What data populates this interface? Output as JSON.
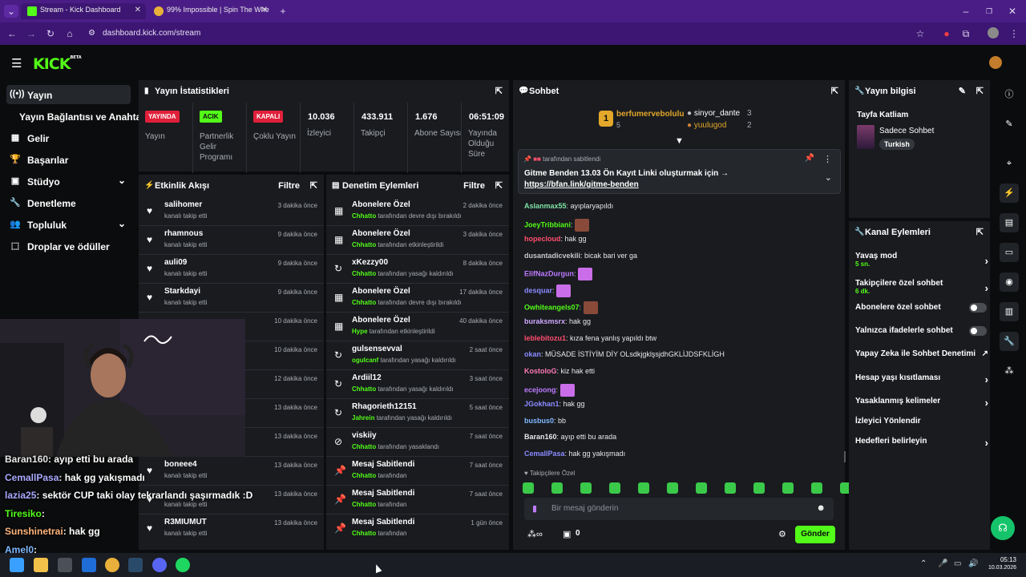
{
  "browser": {
    "tabs": [
      {
        "title": "Stream - Kick Dashboard",
        "active": true
      },
      {
        "title": "99% Impossible | Spin The Whe",
        "active": false
      }
    ],
    "url": "dashboard.kick.com/stream"
  },
  "app": {
    "logo": "KICK",
    "logo_badge": "BETA"
  },
  "nav": {
    "items": [
      {
        "label": "Yayın",
        "icon": "broadcast-icon",
        "active": true
      },
      {
        "label": "Yayın Bağlantısı ve Anahtarı",
        "icon": "",
        "active": false
      },
      {
        "label": "Gelir",
        "icon": "revenue-icon",
        "active": false
      },
      {
        "label": "Başarılar",
        "icon": "trophy-icon",
        "active": false
      },
      {
        "label": "Stüdyo",
        "icon": "studio-icon",
        "active": false,
        "chevron": true
      },
      {
        "label": "Denetleme",
        "icon": "wrench-icon",
        "active": false
      },
      {
        "label": "Topluluk",
        "icon": "community-icon",
        "active": false,
        "chevron": true
      },
      {
        "label": "Droplar ve ödüller",
        "icon": "drops-icon",
        "active": false
      }
    ]
  },
  "stats": {
    "title": "Yayın İstatistikleri",
    "items": [
      {
        "badge": "YAYINDA",
        "badge_color": "#e0203a",
        "label": "Yayın"
      },
      {
        "badge": "ACIK",
        "badge_color": "#53fc18",
        "label": "Partnerlik Gelir Programı"
      },
      {
        "badge": "KAPALI",
        "badge_color": "#e0203a",
        "label": "Çoklu Yayın"
      },
      {
        "value": "10.036",
        "label": "İzleyici"
      },
      {
        "value": "433.911",
        "label": "Takipçi"
      },
      {
        "value": "1.676",
        "label": "Abone Sayısı"
      },
      {
        "value": "06:51:09",
        "label": "Yayında Olduğu Süre"
      }
    ]
  },
  "activity": {
    "title": "Etkinlik Akışı",
    "filter": "Filtre",
    "rows": [
      {
        "name": "salihomer",
        "sub": "kanalı takip etti",
        "time": "3 dakika önce"
      },
      {
        "name": "rhamnous",
        "sub": "kanalı takip etti",
        "time": "9 dakika önce"
      },
      {
        "name": "auli09",
        "sub": "kanalı takip etti",
        "time": "9 dakika önce"
      },
      {
        "name": "Starkdayi",
        "sub": "kanalı takip etti",
        "time": "9 dakika önce"
      },
      {
        "name": "",
        "sub": "",
        "time": "10 dakika önce"
      },
      {
        "name": "",
        "sub": "",
        "time": "10 dakika önce"
      },
      {
        "name": "",
        "sub": "",
        "time": "12 dakika önce"
      },
      {
        "name": "",
        "sub": "",
        "time": "13 dakika önce"
      },
      {
        "name": "",
        "sub": "",
        "time": "13 dakika önce"
      },
      {
        "name": "boneee4",
        "sub": "kanalı takip etti",
        "time": "13 dakika önce"
      },
      {
        "name": "",
        "sub": "kanalı takip etti",
        "time": "13 dakika önce"
      },
      {
        "name": "R3MIUMUT",
        "sub": "kanalı takip etti",
        "time": "13 dakika önce"
      }
    ]
  },
  "moderation": {
    "title": "Denetim Eylemleri",
    "filter": "Filtre",
    "rows": [
      {
        "name": "Abonelere Özel",
        "actor": "Chhatto",
        "action": "tarafından devre dışı bırakıldı",
        "time": "2 dakika önce",
        "icon": "gift-icon"
      },
      {
        "name": "Abonelere Özel",
        "actor": "Chhatto",
        "action": "tarafından etkinleştirildi",
        "time": "3 dakika önce",
        "icon": "gift-icon"
      },
      {
        "name": "xKezzy00",
        "actor": "Chhatto",
        "action": "tarafından yasağı kaldırıldı",
        "time": "8 dakika önce",
        "icon": "undo-icon"
      },
      {
        "name": "Abonelere Özel",
        "actor": "Chhatto",
        "action": "tarafından devre dışı bırakıldı",
        "time": "17 dakika önce",
        "icon": "gift-icon"
      },
      {
        "name": "Abonelere Özel",
        "actor": "Hype",
        "action": "tarafından etkinleştirildi",
        "time": "40 dakika önce",
        "icon": "gift-icon"
      },
      {
        "name": "gulsensevval",
        "actor": "ogulcanf",
        "action": "tarafından yasağı kaldırıldı",
        "time": "2 saat önce",
        "icon": "undo-icon"
      },
      {
        "name": "Ardiil12",
        "actor": "Chhatto",
        "action": "tarafından yasağı kaldırıldı",
        "time": "3 saat önce",
        "icon": "undo-icon"
      },
      {
        "name": "Rhagorieth12151",
        "actor": "Jahrein",
        "action": "tarafından yasağı kaldırıldı",
        "time": "5 saat önce",
        "icon": "undo-icon"
      },
      {
        "name": "viskiiy",
        "actor": "Chhatto",
        "action": "tarafından yasaklandı",
        "time": "7 saat önce",
        "icon": "ban-icon"
      },
      {
        "name": "Mesaj Sabitlendi",
        "actor": "Chhatto",
        "action": "tarafından",
        "time": "7 saat önce",
        "icon": "pin-icon"
      },
      {
        "name": "Mesaj Sabitlendi",
        "actor": "Chhatto",
        "action": "tarafından",
        "time": "7 saat önce",
        "icon": "pin-icon"
      },
      {
        "name": "Mesaj Sabitlendi",
        "actor": "Chhatto",
        "action": "tarafından",
        "time": "1 gün önce",
        "icon": "pin-icon"
      }
    ]
  },
  "chat": {
    "title": "Sohbet",
    "gifters": [
      {
        "rank": "1",
        "name": "berfumervebolulu",
        "count": "5"
      },
      {
        "name": "sinyor_dante",
        "count": "3"
      },
      {
        "name": "yuulugod",
        "count": "2"
      }
    ],
    "pinned": {
      "by_suffix": "tarafından sabitlendi",
      "text": "Gitme Benden 13.03 Ön Kayıt Linki oluşturmak için → ",
      "link": "https://bfan.link/gitme-benden"
    },
    "messages": [
      {
        "user": "Aslanmax55",
        "color": "#7fe3a5",
        "text": ": ayıplaryapıldı"
      },
      {
        "user": "JoeyTribbiani",
        "color": "#53fc18",
        "text": ":"
      },
      {
        "user": "hopecloud",
        "color": "#ff4d6d",
        "text": ": hak gg"
      },
      {
        "user": "dusantadicvekili",
        "color": "#c7c7c7",
        "text": ": bicak bari ver ga"
      },
      {
        "user": "ElifNazDurgun",
        "color": "#bd7bff",
        "text": ":"
      },
      {
        "user": "desquar",
        "color": "#8b8bff",
        "text": ":"
      },
      {
        "user": "Owhiteangels07",
        "color": "#53fc18",
        "text": ":"
      },
      {
        "user": "buraksmsrx",
        "color": "#d0a8ff",
        "text": ": hak gg"
      },
      {
        "user": "leblebitozu1",
        "color": "#ff4d6d",
        "text": ": kıza fena yanlış yapıldı btw"
      },
      {
        "user": "okan",
        "color": "#8b8bff",
        "text": ": MÜSADE İSTİYİM DİY OLsdkjgklşsjdhGKLİJDSFKLİGH"
      },
      {
        "user": "KostoloG",
        "color": "#ff7ab6",
        "text": ": kiz hak etti"
      },
      {
        "user": "ecejoong",
        "color": "#bd7bff",
        "text": ":"
      },
      {
        "user": "JGokhan1",
        "color": "#8b8bff",
        "text": ": hak gg"
      },
      {
        "user": "busbus0",
        "color": "#7fb8ff",
        "text": ": bb"
      },
      {
        "user": "Baran160",
        "color": "#e8e8e8",
        "text": ": ayıp etti bu arada"
      },
      {
        "user": "CemallPasa",
        "color": "#8b8bff",
        "text": ": hak gg yakışmadı"
      }
    ],
    "followers_only_label": "Takipçilere Özel",
    "input_placeholder": "Bir mesaj gönderin",
    "points": "0",
    "send_label": "Gönder"
  },
  "overlay_chat": [
    {
      "user": "Baran160",
      "text": ": ayıp etti bu arada",
      "color": "#e8e8e8"
    },
    {
      "user": "CemallPasa",
      "text": ": hak gg yakışmadı",
      "color": "#a9a9ff"
    },
    {
      "user": "lazia25",
      "text": ": sektör CUP taki olay tekrarlandı şaşırmadık :D",
      "color": "#a9a9ff"
    },
    {
      "user": "Tiresiko",
      "text": ":",
      "color": "#53fc18"
    },
    {
      "user": "Sunshinetrai",
      "text": ": hak gg",
      "color": "#ffb37a"
    },
    {
      "user": "Amel0",
      "text": ":",
      "color": "#7fb8ff"
    }
  ],
  "stream_info": {
    "title": "Yayın bilgisi",
    "stream_title": "Tayfa Katliam",
    "category": "Sadece Sohbet",
    "tag": "Turkish"
  },
  "channel_actions": {
    "title": "Kanal Eylemleri",
    "items": [
      {
        "label": "Yavaş mod",
        "sub": "5 sn.",
        "type": "arrow"
      },
      {
        "label": "Takipçilere özel sohbet",
        "sub": "6 dk.",
        "type": "arrow"
      },
      {
        "label": "Abonelere özel sohbet",
        "type": "toggle"
      },
      {
        "label": "Yalnızca ifadelerle sohbet",
        "type": "toggle"
      },
      {
        "label": "Yapay Zeka ile Sohbet Denetimi",
        "type": "external"
      },
      {
        "label": "Hesap yaşı kısıtlaması",
        "type": "arrow"
      },
      {
        "label": "Yasaklanmış kelimeler",
        "type": "arrow"
      },
      {
        "label": "İzleyici Yönlendir",
        "type": "none"
      },
      {
        "label": "Hedefleri belirleyin",
        "type": "arrow"
      }
    ]
  },
  "taskbar": {
    "time": "05:13",
    "date": "10.03.2026"
  }
}
